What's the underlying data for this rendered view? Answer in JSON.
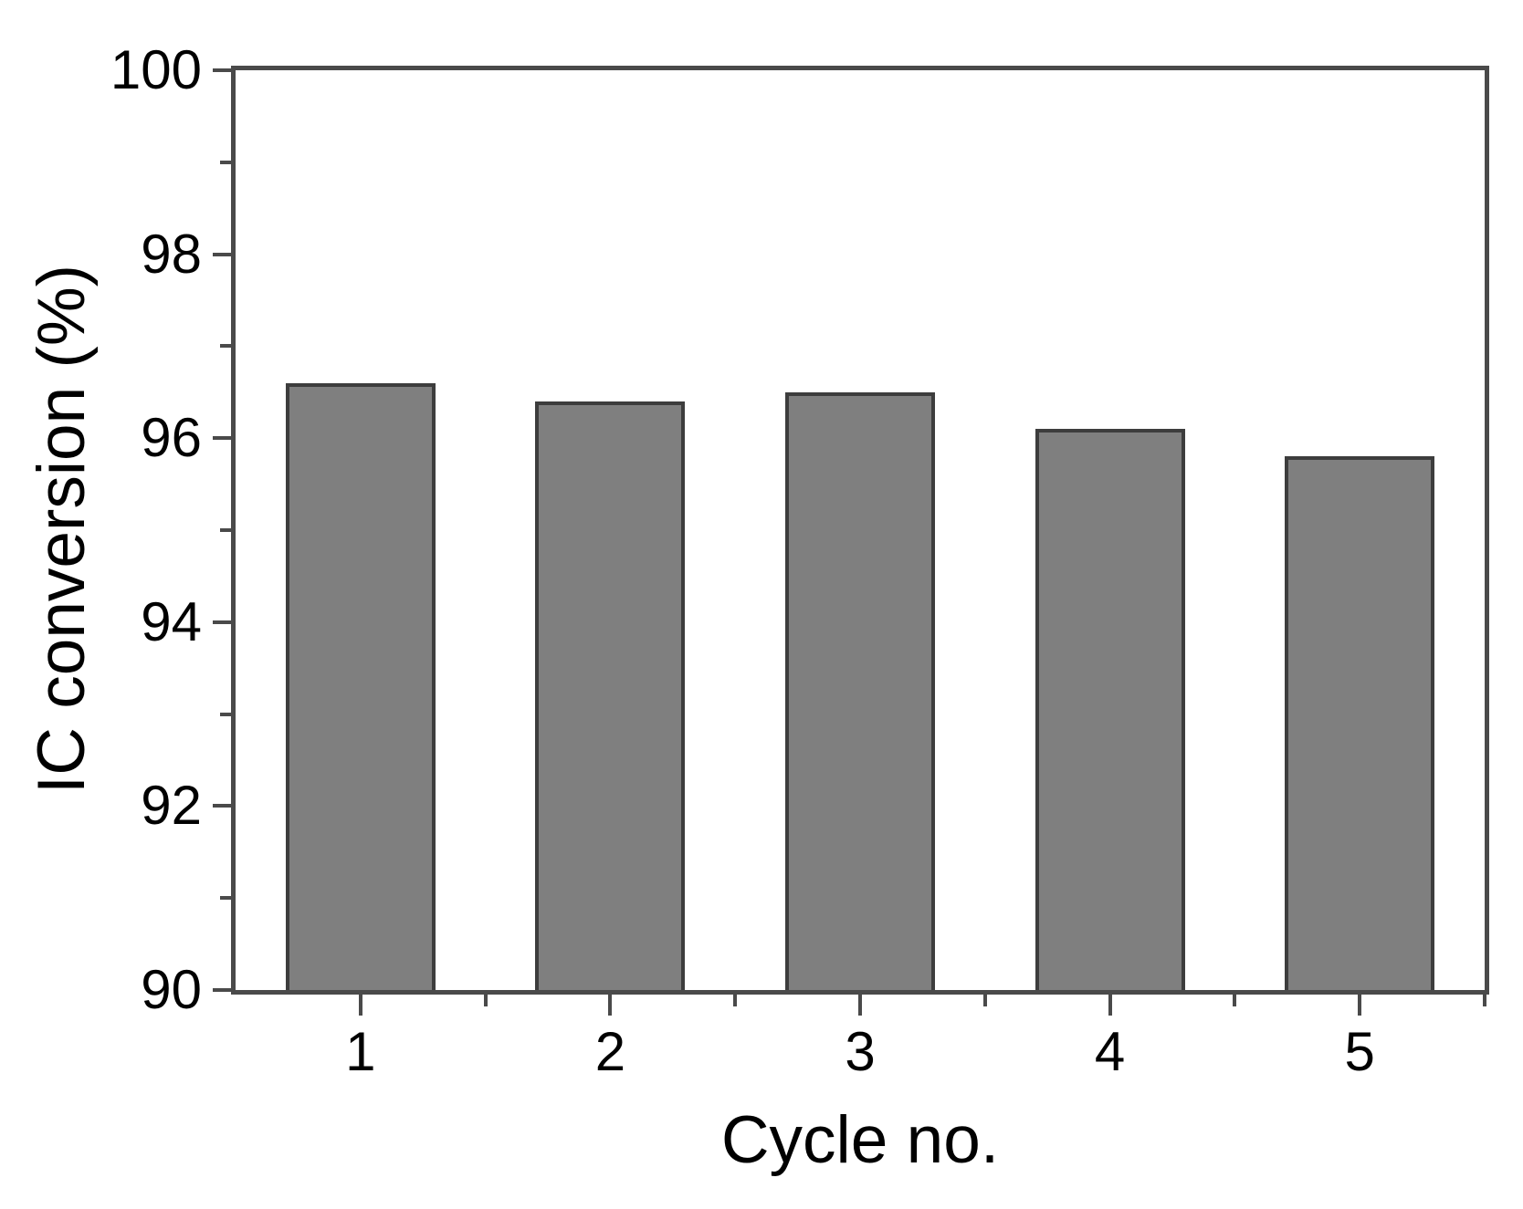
{
  "figure": {
    "background": "#ffffff"
  },
  "chart_data": {
    "type": "bar",
    "title": "",
    "xlabel": "Cycle no.",
    "ylabel": "IC conversion (%)",
    "categories": [
      "1",
      "2",
      "3",
      "4",
      "5"
    ],
    "values": [
      96.6,
      96.4,
      96.5,
      96.1,
      95.8
    ],
    "ylim": [
      90,
      100
    ],
    "y_major_ticks": [
      100,
      98,
      96,
      94,
      92,
      90
    ],
    "y_minor_ticks": [
      99,
      97,
      95,
      93,
      91
    ],
    "x_minor_tick_positions": [
      1.5,
      2.5,
      3.5,
      4.5,
      5.5
    ],
    "bar_width_fraction": 0.6,
    "grid": false,
    "legend": "none",
    "colors": {
      "bar_fill": "#7f7f7f",
      "bar_border": "#3d3d3d",
      "axis": "#4a4a4a",
      "text": "#000000",
      "background": "#ffffff"
    }
  }
}
